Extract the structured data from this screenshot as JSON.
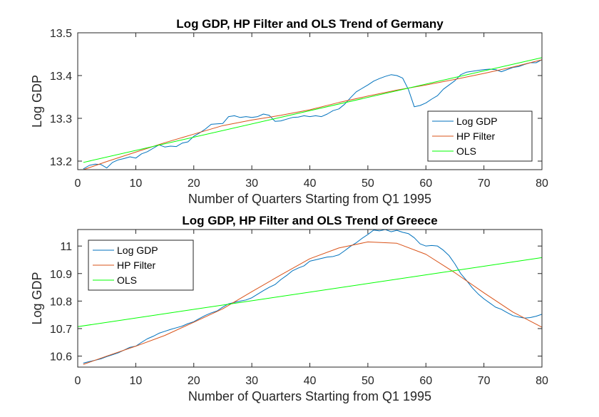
{
  "chart_data": [
    {
      "type": "line",
      "title": "Log GDP, HP Filter and OLS Trend of Germany",
      "xlabel": "Number of Quarters Starting from Q1 1995",
      "ylabel": "Log GDP",
      "xlim": [
        0,
        80
      ],
      "ylim": [
        13.18,
        13.5
      ],
      "xticks": [
        0,
        10,
        20,
        30,
        40,
        50,
        60,
        70,
        80
      ],
      "yticks": [
        13.2,
        13.3,
        13.4,
        13.5
      ],
      "xtick_labels": [
        "0",
        "10",
        "20",
        "30",
        "40",
        "50",
        "60",
        "70",
        "80"
      ],
      "ytick_labels": [
        "13.2",
        "13.3",
        "13.4",
        "13.5"
      ],
      "legend_position": "right",
      "grid": false,
      "series": [
        {
          "name": "Log GDP",
          "color": "#0072BD",
          "x": [
            1,
            2,
            3,
            4,
            5,
            6,
            7,
            8,
            9,
            10,
            11,
            12,
            13,
            14,
            15,
            16,
            17,
            18,
            19,
            20,
            21,
            22,
            23,
            24,
            25,
            26,
            27,
            28,
            29,
            30,
            31,
            32,
            33,
            34,
            35,
            36,
            37,
            38,
            39,
            40,
            41,
            42,
            43,
            44,
            45,
            46,
            47,
            48,
            49,
            50,
            51,
            52,
            53,
            54,
            55,
            56,
            57,
            58,
            59,
            60,
            61,
            62,
            63,
            64,
            65,
            66,
            67,
            68,
            69,
            70,
            71,
            72,
            73,
            74,
            75,
            76,
            77,
            78,
            79,
            80
          ],
          "y": [
            13.182,
            13.19,
            13.193,
            13.192,
            13.184,
            13.197,
            13.203,
            13.206,
            13.21,
            13.207,
            13.217,
            13.222,
            13.23,
            13.238,
            13.233,
            13.235,
            13.234,
            13.242,
            13.245,
            13.258,
            13.266,
            13.275,
            13.286,
            13.287,
            13.288,
            13.304,
            13.306,
            13.302,
            13.304,
            13.302,
            13.304,
            13.31,
            13.307,
            13.293,
            13.294,
            13.298,
            13.302,
            13.303,
            13.306,
            13.304,
            13.306,
            13.304,
            13.31,
            13.318,
            13.322,
            13.333,
            13.348,
            13.362,
            13.37,
            13.378,
            13.387,
            13.393,
            13.398,
            13.402,
            13.4,
            13.394,
            13.367,
            13.327,
            13.33,
            13.336,
            13.345,
            13.353,
            13.368,
            13.378,
            13.388,
            13.402,
            13.408,
            13.41,
            13.412,
            13.414,
            13.415,
            13.414,
            13.409,
            13.414,
            13.419,
            13.421,
            13.426,
            13.43,
            13.43,
            13.437
          ]
        },
        {
          "name": "HP Filter",
          "color": "#D95319",
          "x": [
            1,
            5,
            10,
            15,
            20,
            25,
            30,
            35,
            40,
            45,
            50,
            55,
            60,
            65,
            70,
            75,
            80
          ],
          "y": [
            13.18,
            13.199,
            13.221,
            13.243,
            13.263,
            13.283,
            13.296,
            13.307,
            13.32,
            13.337,
            13.352,
            13.366,
            13.378,
            13.391,
            13.405,
            13.42,
            13.437
          ]
        },
        {
          "name": "OLS",
          "color": "#00FF00",
          "x": [
            1,
            80
          ],
          "y": [
            13.197,
            13.442
          ]
        }
      ]
    },
    {
      "type": "line",
      "title": "Log GDP, HP Filter and OLS Trend of Greece",
      "xlabel": "Number of Quarters Starting from Q1 1995",
      "ylabel": "Log GDP",
      "xlim": [
        0,
        80
      ],
      "ylim": [
        10.56,
        11.06
      ],
      "xticks": [
        0,
        10,
        20,
        30,
        40,
        50,
        60,
        70,
        80
      ],
      "yticks": [
        10.6,
        10.7,
        10.8,
        10.9,
        11
      ],
      "xtick_labels": [
        "0",
        "10",
        "20",
        "30",
        "40",
        "50",
        "60",
        "70",
        "80"
      ],
      "ytick_labels": [
        "10.6",
        "10.7",
        "10.8",
        "10.9",
        "11"
      ],
      "legend_position": "top-left",
      "grid": false,
      "series": [
        {
          "name": "Log GDP",
          "color": "#0072BD",
          "x": [
            1,
            2,
            3,
            4,
            5,
            6,
            7,
            8,
            9,
            10,
            11,
            12,
            13,
            14,
            15,
            16,
            17,
            18,
            19,
            20,
            21,
            22,
            23,
            24,
            25,
            26,
            27,
            28,
            29,
            30,
            31,
            32,
            33,
            34,
            35,
            36,
            37,
            38,
            39,
            40,
            41,
            42,
            43,
            44,
            45,
            46,
            47,
            48,
            49,
            50,
            51,
            52,
            53,
            54,
            55,
            56,
            57,
            58,
            59,
            60,
            61,
            62,
            63,
            64,
            65,
            66,
            67,
            68,
            69,
            70,
            71,
            72,
            73,
            74,
            75,
            76,
            77,
            78,
            79,
            80
          ],
          "y": [
            10.575,
            10.58,
            10.585,
            10.59,
            10.598,
            10.605,
            10.612,
            10.622,
            10.632,
            10.636,
            10.65,
            10.663,
            10.672,
            10.683,
            10.69,
            10.697,
            10.703,
            10.709,
            10.718,
            10.725,
            10.737,
            10.748,
            10.757,
            10.764,
            10.778,
            10.79,
            10.795,
            10.8,
            10.804,
            10.812,
            10.825,
            10.838,
            10.85,
            10.86,
            10.878,
            10.893,
            10.91,
            10.92,
            10.928,
            10.945,
            10.95,
            10.955,
            10.96,
            10.962,
            10.968,
            10.983,
            10.999,
            11.012,
            11.028,
            11.042,
            11.058,
            11.055,
            11.06,
            11.052,
            11.057,
            11.05,
            11.045,
            11.03,
            11.008,
            11.0,
            11.002,
            11.0,
            10.985,
            10.965,
            10.935,
            10.9,
            10.875,
            10.848,
            10.826,
            10.808,
            10.793,
            10.778,
            10.77,
            10.758,
            10.747,
            10.742,
            10.738,
            10.74,
            10.745,
            10.752
          ]
        },
        {
          "name": "HP Filter",
          "color": "#D95319",
          "x": [
            1,
            5,
            10,
            15,
            20,
            25,
            30,
            35,
            40,
            45,
            50,
            55,
            60,
            65,
            70,
            75,
            80
          ],
          "y": [
            10.57,
            10.6,
            10.636,
            10.675,
            10.723,
            10.772,
            10.834,
            10.895,
            10.954,
            10.993,
            11.015,
            11.01,
            10.97,
            10.903,
            10.83,
            10.76,
            10.705
          ]
        },
        {
          "name": "OLS",
          "color": "#00FF00",
          "x": [
            0,
            80
          ],
          "y": [
            10.707,
            10.958
          ]
        }
      ]
    }
  ]
}
